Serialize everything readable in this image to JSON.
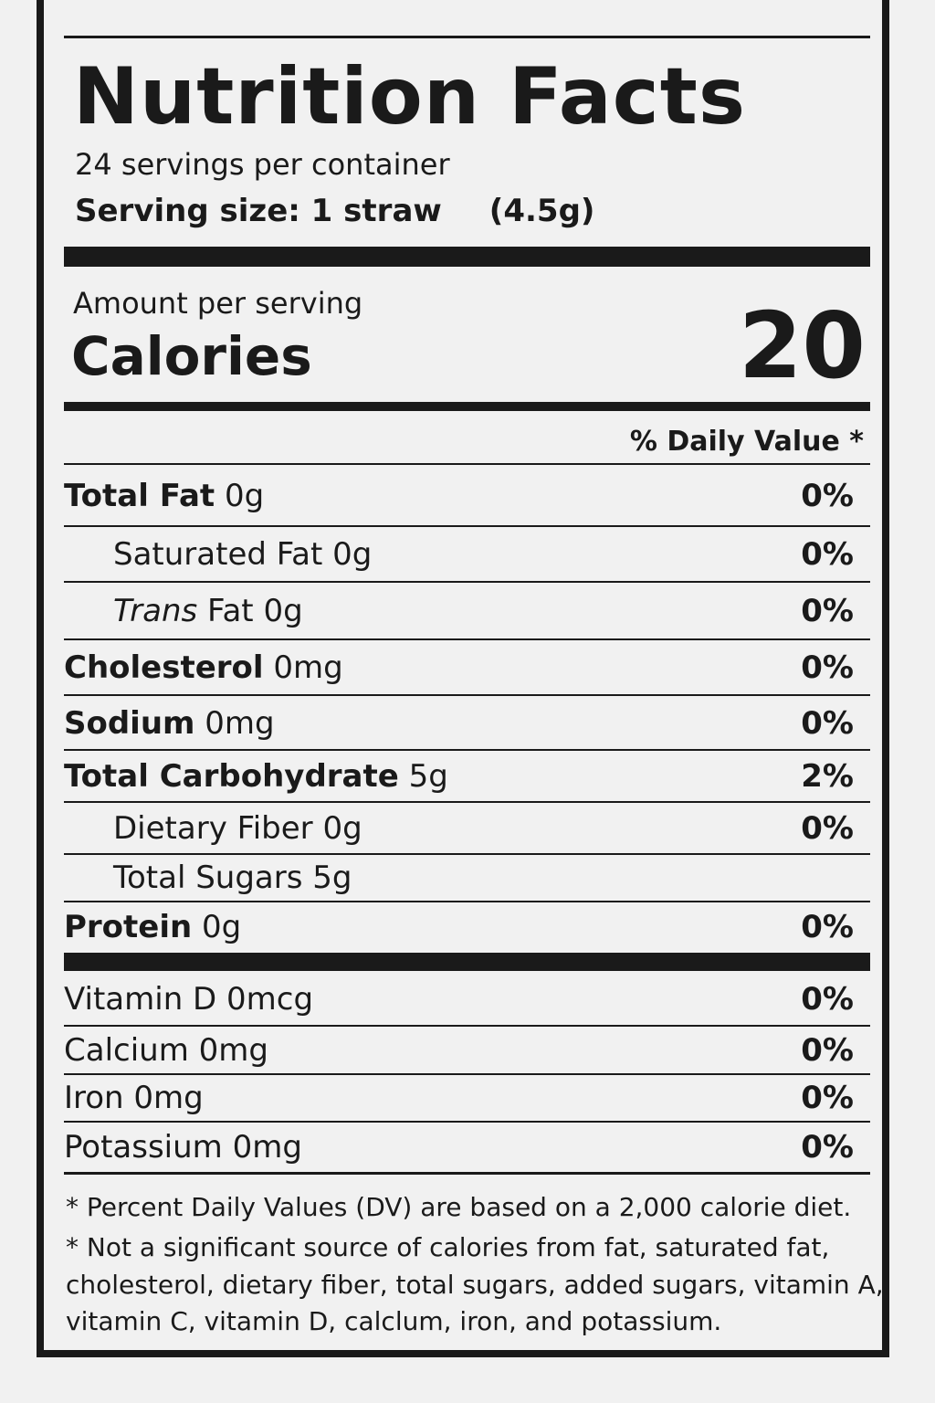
{
  "label": {
    "title": "Nutrition Facts",
    "servings_per_container": "24 servings per container",
    "serving_size_label": "Serving size: 1 straw",
    "serving_size_weight": "(4.5g)",
    "amount_per_serving": "Amount per serving",
    "calories_label": "Calories",
    "calories_value": "20",
    "daily_value_header": "% Daily Value *",
    "nutrients": [
      {
        "name": "Total Fat",
        "amount": "0g",
        "dv": "0%"
      },
      {
        "name": "Saturated Fat",
        "amount": "0g",
        "dv": "0%"
      },
      {
        "name": "Trans",
        "name_rest": "Fat",
        "amount": "0g",
        "dv": "0%"
      },
      {
        "name": "Cholesterol",
        "amount": "0mg",
        "dv": "0%"
      },
      {
        "name": "Sodium",
        "amount": "0mg",
        "dv": "0%"
      },
      {
        "name": "Total Carbohydrate",
        "amount": "5g",
        "dv": "2%"
      },
      {
        "name": "Dietary Fiber",
        "amount": "0g",
        "dv": "0%"
      },
      {
        "name": "Total Sugars",
        "amount": "5g",
        "dv": ""
      },
      {
        "name": "Protein",
        "amount": "0g",
        "dv": "0%"
      }
    ],
    "vitamins": [
      {
        "text": "Vitamin D 0mcg",
        "dv": "0%"
      },
      {
        "text": "Calcium 0mg",
        "dv": "0%"
      },
      {
        "text": "Iron 0mg",
        "dv": "0%"
      },
      {
        "text": "Potassium 0mg",
        "dv": "0%"
      }
    ],
    "footnotes": [
      "* Percent Daily Values (DV) are based on a 2,000 calorie diet.",
      "* Not a significant source of calories from fat, saturated fat,",
      "cholesterol, dietary fiber, total sugars, added sugars, vitamin A,",
      "vitamin C, vitamin D, calclum, iron, and potassium."
    ]
  }
}
